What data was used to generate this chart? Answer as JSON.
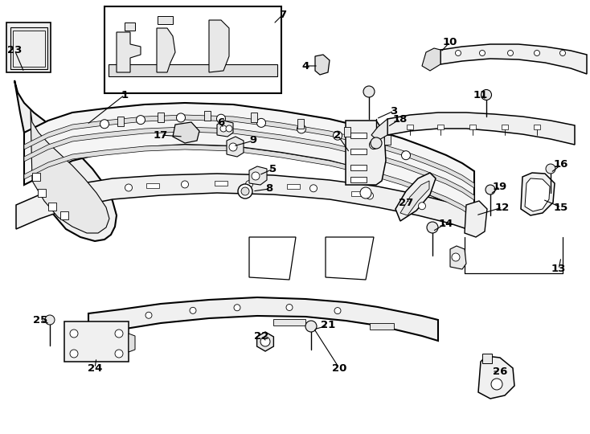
{
  "bg_color": "#ffffff",
  "line_color": "#000000",
  "fig_width": 7.34,
  "fig_height": 5.4,
  "dpi": 100,
  "title_fontsize": 9,
  "label_fontsize": 9.5
}
